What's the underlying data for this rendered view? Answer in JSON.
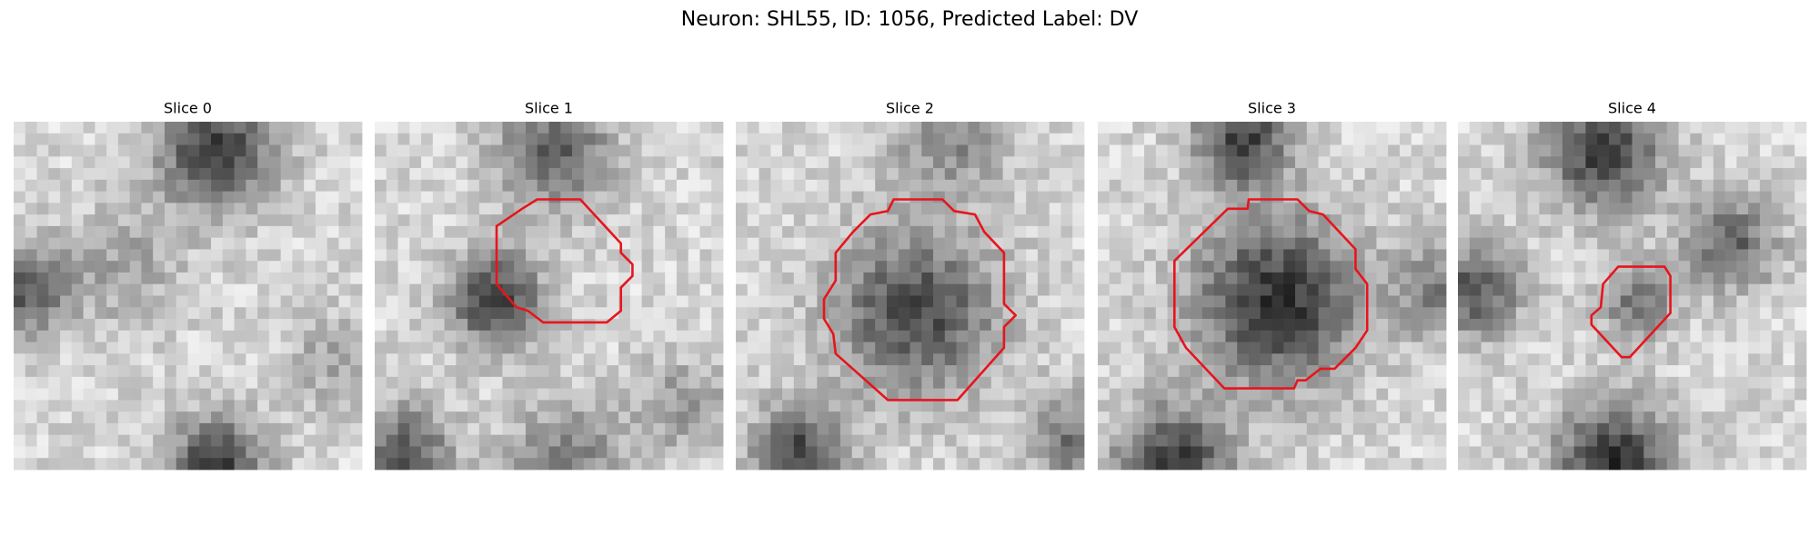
{
  "title": "Neuron: SHL55, ID: 1056, Predicted Label: DV",
  "panels": [
    {
      "title": "Slice 0"
    },
    {
      "title": "Slice 1"
    },
    {
      "title": "Slice 2"
    },
    {
      "title": "Slice 3"
    },
    {
      "title": "Slice 4"
    }
  ]
}
